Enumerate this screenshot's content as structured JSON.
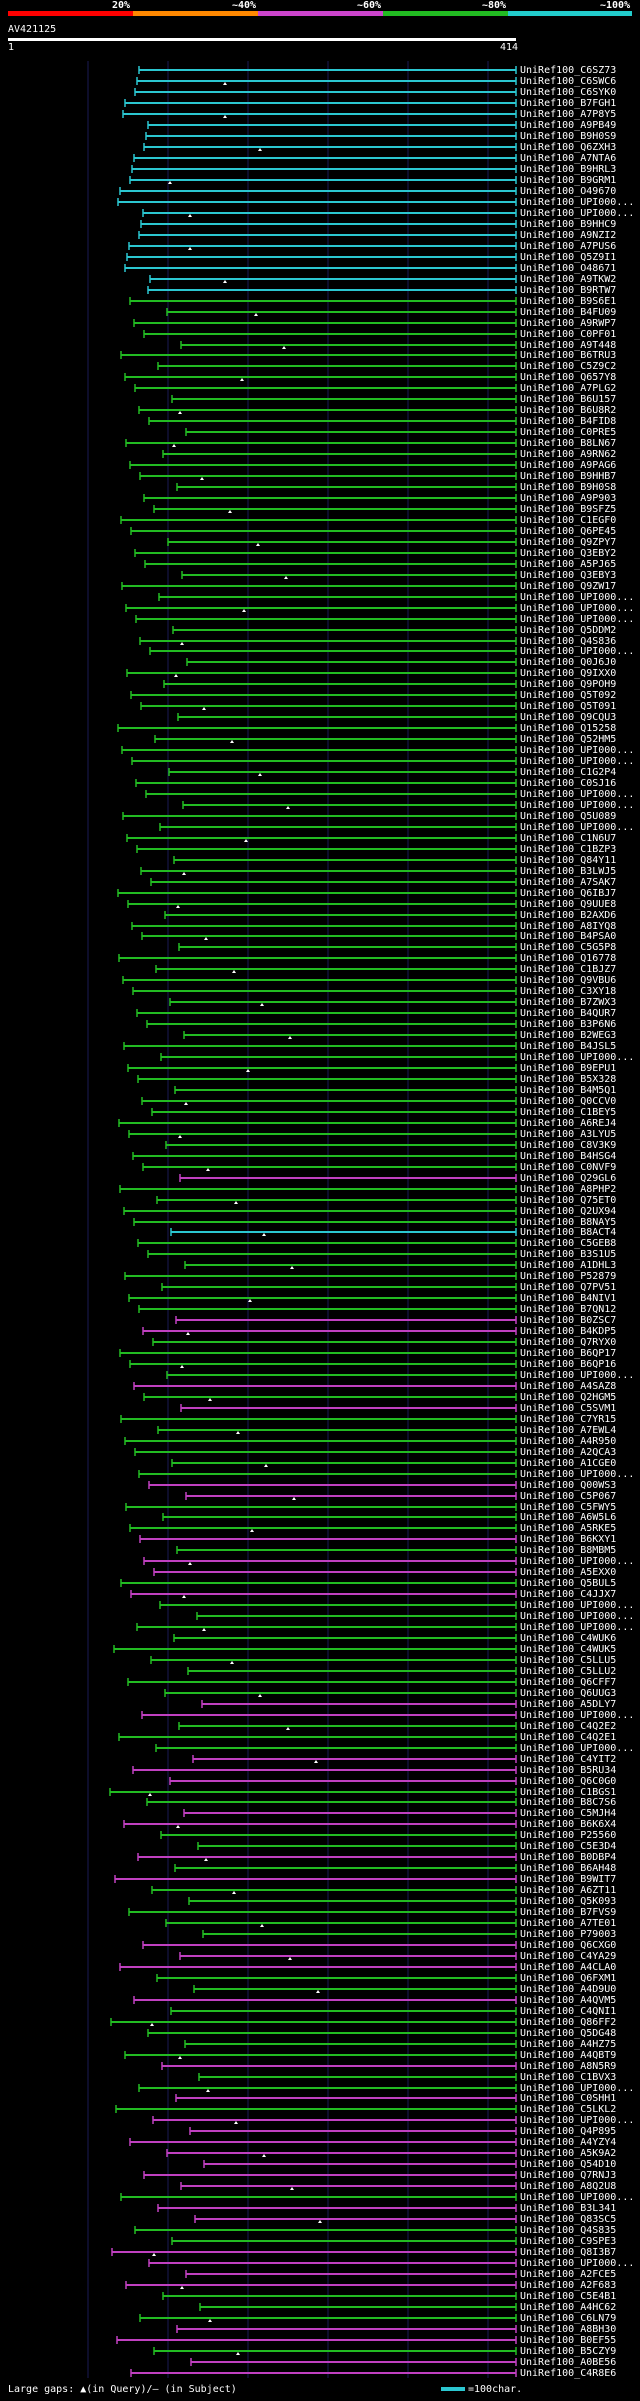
{
  "legend": {
    "thresholds": [
      "20%",
      "~40%",
      "~60%",
      "~80%",
      "~100%"
    ],
    "colors": [
      "#ff0000",
      "#ff8800",
      "#cc44cc",
      "#22bb22",
      "#22cccc"
    ]
  },
  "query": {
    "id": "AV421125",
    "start": "1",
    "end": "414"
  },
  "rows": [
    {
      "label": "UniRef100_C6SZ73",
      "c": "cyan"
    },
    {
      "label": "UniRef100_C6SWC6",
      "c": "cyan"
    },
    {
      "label": "UniRef100_C6SYK0",
      "c": "cyan"
    },
    {
      "label": "UniRef100_B7FGH1",
      "c": "cyan"
    },
    {
      "label": "UniRef100_A7P8Y5",
      "c": "cyan"
    },
    {
      "label": "UniRef100_A9PB49",
      "c": "cyan"
    },
    {
      "label": "UniRef100_B9H0S9",
      "c": "cyan"
    },
    {
      "label": "UniRef100_Q6ZXH3",
      "c": "cyan"
    },
    {
      "label": "UniRef100_A7NTA6",
      "c": "cyan"
    },
    {
      "label": "UniRef100_B9HRL3",
      "c": "cyan"
    },
    {
      "label": "UniRef100_B9GRM1",
      "c": "cyan"
    },
    {
      "label": "UniRef100_O49670",
      "c": "cyan"
    },
    {
      "label": "UniRef100_UPI000...",
      "c": "cyan"
    },
    {
      "label": "UniRef100_UPI000...",
      "c": "cyan"
    },
    {
      "label": "UniRef100_B9HHC9",
      "c": "cyan"
    },
    {
      "label": "UniRef100_A9NZI2",
      "c": "cyan"
    },
    {
      "label": "UniRef100_A7PUS6",
      "c": "cyan"
    },
    {
      "label": "UniRef100_Q5Z9I1",
      "c": "cyan"
    },
    {
      "label": "UniRef100_O48671",
      "c": "cyan"
    },
    {
      "label": "UniRef100_A9TKW2",
      "c": "cyan"
    },
    {
      "label": "UniRef100_B9RTW7",
      "c": "cyan"
    },
    {
      "label": "UniRef100_B9S6E1",
      "c": "green"
    },
    {
      "label": "UniRef100_B4FU09",
      "c": "green"
    },
    {
      "label": "UniRef100_A9RWP7",
      "c": "green"
    },
    {
      "label": "UniRef100_C0PF01",
      "c": "green"
    },
    {
      "label": "UniRef100_A9T448",
      "c": "green"
    },
    {
      "label": "UniRef100_B6TRU3",
      "c": "green"
    },
    {
      "label": "UniRef100_C5Z9C2",
      "c": "green"
    },
    {
      "label": "UniRef100_Q657Y8",
      "c": "green"
    },
    {
      "label": "UniRef100_A7PLG2",
      "c": "green"
    },
    {
      "label": "UniRef100_B6U157",
      "c": "green"
    },
    {
      "label": "UniRef100_B6U8R2",
      "c": "green"
    },
    {
      "label": "UniRef100_B4FID8",
      "c": "green"
    },
    {
      "label": "UniRef100_C0PRE5",
      "c": "green"
    },
    {
      "label": "UniRef100_B8LN67",
      "c": "green"
    },
    {
      "label": "UniRef100_A9RN62",
      "c": "green"
    },
    {
      "label": "UniRef100_A9PAG6",
      "c": "green"
    },
    {
      "label": "UniRef100_B9HHB7",
      "c": "green"
    },
    {
      "label": "UniRef100_B9H0S8",
      "c": "green"
    },
    {
      "label": "UniRef100_A9P903",
      "c": "green"
    },
    {
      "label": "UniRef100_B9SFZ5",
      "c": "green"
    },
    {
      "label": "UniRef100_C1EGF0",
      "c": "green"
    },
    {
      "label": "UniRef100_Q6PE45",
      "c": "green"
    },
    {
      "label": "UniRef100_Q9ZPY7",
      "c": "green"
    },
    {
      "label": "UniRef100_Q3EBY2",
      "c": "green"
    },
    {
      "label": "UniRef100_A5PJ65",
      "c": "green"
    },
    {
      "label": "UniRef100_Q3EBY3",
      "c": "green"
    },
    {
      "label": "UniRef100_Q9ZW17",
      "c": "green"
    },
    {
      "label": "UniRef100_UPI000...",
      "c": "green"
    },
    {
      "label": "UniRef100_UPI000...",
      "c": "green"
    },
    {
      "label": "UniRef100_UPI000...",
      "c": "green"
    },
    {
      "label": "UniRef100_Q5DDM2",
      "c": "green"
    },
    {
      "label": "UniRef100_Q4S836",
      "c": "green"
    },
    {
      "label": "UniRef100_UPI000...",
      "c": "green"
    },
    {
      "label": "UniRef100_Q0J6J0",
      "c": "green"
    },
    {
      "label": "UniRef100_Q9IXX0",
      "c": "green"
    },
    {
      "label": "UniRef100_Q9POH9",
      "c": "green"
    },
    {
      "label": "UniRef100_Q5T092",
      "c": "green"
    },
    {
      "label": "UniRef100_Q5T091",
      "c": "green"
    },
    {
      "label": "UniRef100_Q9CQU3",
      "c": "green"
    },
    {
      "label": "UniRef100_Q15258",
      "c": "green"
    },
    {
      "label": "UniRef100_Q52HM5",
      "c": "green"
    },
    {
      "label": "UniRef100_UPI000...",
      "c": "green"
    },
    {
      "label": "UniRef100_UPI000...",
      "c": "green"
    },
    {
      "label": "UniRef100_C1G2P4",
      "c": "green"
    },
    {
      "label": "UniRef100_C0SJ16",
      "c": "green"
    },
    {
      "label": "UniRef100_UPI000...",
      "c": "green"
    },
    {
      "label": "UniRef100_UPI000...",
      "c": "green"
    },
    {
      "label": "UniRef100_Q5U089",
      "c": "green"
    },
    {
      "label": "UniRef100_UPI000...",
      "c": "green"
    },
    {
      "label": "UniRef100_C1N6U7",
      "c": "green"
    },
    {
      "label": "UniRef100_C1BZP3",
      "c": "green"
    },
    {
      "label": "UniRef100_Q84Y11",
      "c": "green"
    },
    {
      "label": "UniRef100_B3LWJ5",
      "c": "green"
    },
    {
      "label": "UniRef100_A7SAK7",
      "c": "green"
    },
    {
      "label": "UniRef100_Q6IBJ7",
      "c": "green"
    },
    {
      "label": "UniRef100_Q9UUE8",
      "c": "green"
    },
    {
      "label": "UniRef100_B2AXD6",
      "c": "green"
    },
    {
      "label": "UniRef100_A8IYQ8",
      "c": "green"
    },
    {
      "label": "UniRef100_B4PSA0",
      "c": "green"
    },
    {
      "label": "UniRef100_C5G5P8",
      "c": "green"
    },
    {
      "label": "UniRef100_Q16778",
      "c": "green"
    },
    {
      "label": "UniRef100_C1BJZ7",
      "c": "green"
    },
    {
      "label": "UniRef100_Q9VBU6",
      "c": "green"
    },
    {
      "label": "UniRef100_C3XY18",
      "c": "green"
    },
    {
      "label": "UniRef100_B7ZWX3",
      "c": "green"
    },
    {
      "label": "UniRef100_B4QUR7",
      "c": "green"
    },
    {
      "label": "UniRef100_B3P6N6",
      "c": "green"
    },
    {
      "label": "UniRef100_B2WEG3",
      "c": "green"
    },
    {
      "label": "UniRef100_B4JSL5",
      "c": "green"
    },
    {
      "label": "UniRef100_UPI000...",
      "c": "green"
    },
    {
      "label": "UniRef100_B9EPU1",
      "c": "green"
    },
    {
      "label": "UniRef100_B5X328",
      "c": "green"
    },
    {
      "label": "UniRef100_B4M5Q1",
      "c": "green"
    },
    {
      "label": "UniRef100_Q0CCV0",
      "c": "green"
    },
    {
      "label": "UniRef100_C1BEY5",
      "c": "green"
    },
    {
      "label": "UniRef100_A6REJ4",
      "c": "green"
    },
    {
      "label": "UniRef100_A3LYU5",
      "c": "green"
    },
    {
      "label": "UniRef100_C8V3K9",
      "c": "green"
    },
    {
      "label": "UniRef100_B4HSG4",
      "c": "green"
    },
    {
      "label": "UniRef100_C0NVF9",
      "c": "green"
    },
    {
      "label": "UniRef100_Q29GL6",
      "c": "magenta"
    },
    {
      "label": "UniRef100_A8PHP2",
      "c": "green"
    },
    {
      "label": "UniRef100_Q75ET0",
      "c": "green"
    },
    {
      "label": "UniRef100_Q2UX94",
      "c": "green"
    },
    {
      "label": "UniRef100_B8NAY5",
      "c": "green"
    },
    {
      "label": "UniRef100_B8ACT4",
      "c": "cyan"
    },
    {
      "label": "UniRef100_C5GEB8",
      "c": "green"
    },
    {
      "label": "UniRef100_B3S1U5",
      "c": "green"
    },
    {
      "label": "UniRef100_A1DHL3",
      "c": "green"
    },
    {
      "label": "UniRef100_P52879",
      "c": "green"
    },
    {
      "label": "UniRef100_Q7PV51",
      "c": "green"
    },
    {
      "label": "UniRef100_B4NIV1",
      "c": "green"
    },
    {
      "label": "UniRef100_B7QN12",
      "c": "green"
    },
    {
      "label": "UniRef100_B0ZSC7",
      "c": "magenta"
    },
    {
      "label": "UniRef100_B4KDP5",
      "c": "magenta"
    },
    {
      "label": "UniRef100_Q7RYX0",
      "c": "green"
    },
    {
      "label": "UniRef100_B6QP17",
      "c": "green"
    },
    {
      "label": "UniRef100_B6QP16",
      "c": "green"
    },
    {
      "label": "UniRef100_UPI000...",
      "c": "green"
    },
    {
      "label": "UniRef100_A4SAZ8",
      "c": "magenta"
    },
    {
      "label": "UniRef100_Q2HGM5",
      "c": "green"
    },
    {
      "label": "UniRef100_C5SVM1",
      "c": "magenta"
    },
    {
      "label": "UniRef100_C7YR15",
      "c": "green"
    },
    {
      "label": "UniRef100_A7EWL4",
      "c": "green"
    },
    {
      "label": "UniRef100_A4R950",
      "c": "green"
    },
    {
      "label": "UniRef100_A2QCA3",
      "c": "green"
    },
    {
      "label": "UniRef100_A1CGE0",
      "c": "green"
    },
    {
      "label": "UniRef100_UPI000...",
      "c": "green"
    },
    {
      "label": "UniRef100_Q00WS3",
      "c": "magenta"
    },
    {
      "label": "UniRef100_C5P067",
      "c": "magenta"
    },
    {
      "label": "UniRef100_C5FWY5",
      "c": "green"
    },
    {
      "label": "UniRef100_A6W5L6",
      "c": "green"
    },
    {
      "label": "UniRef100_A5RKE5",
      "c": "green"
    },
    {
      "label": "UniRef100_B6KXY1",
      "c": "magenta"
    },
    {
      "label": "UniRef100_B8MBM5",
      "c": "green"
    },
    {
      "label": "UniRef100_UPI000...",
      "c": "magenta"
    },
    {
      "label": "UniRef100_A5EXX0",
      "c": "magenta"
    },
    {
      "label": "UniRef100_Q5BUL5",
      "c": "green"
    },
    {
      "label": "UniRef100_C4JJX7",
      "c": "magenta"
    },
    {
      "label": "UniRef100_UPI000...",
      "c": "green"
    },
    {
      "label": "UniRef100_UPI000...",
      "c": "green"
    },
    {
      "label": "UniRef100_UPI000...",
      "c": "green"
    },
    {
      "label": "UniRef100_C4WUK6",
      "c": "green"
    },
    {
      "label": "UniRef100_C4WUK5",
      "c": "green"
    },
    {
      "label": "UniRef100_C5LLU5",
      "c": "green"
    },
    {
      "label": "UniRef100_C5LLU2",
      "c": "green"
    },
    {
      "label": "UniRef100_Q6CFF7",
      "c": "green"
    },
    {
      "label": "UniRef100_Q6UUG3",
      "c": "green"
    },
    {
      "label": "UniRef100_A5DLY7",
      "c": "magenta"
    },
    {
      "label": "UniRef100_UPI000...",
      "c": "magenta"
    },
    {
      "label": "UniRef100_C4Q2E2",
      "c": "green"
    },
    {
      "label": "UniRef100_C4Q2E1",
      "c": "green"
    },
    {
      "label": "UniRef100_UPI000...",
      "c": "green"
    },
    {
      "label": "UniRef100_C4YIT2",
      "c": "magenta"
    },
    {
      "label": "UniRef100_B5RU34",
      "c": "magenta"
    },
    {
      "label": "UniRef100_Q6C0G0",
      "c": "magenta"
    },
    {
      "label": "UniRef100_C1BGS1",
      "c": "green"
    },
    {
      "label": "UniRef100_B8C7S6",
      "c": "green"
    },
    {
      "label": "UniRef100_C5MJH4",
      "c": "magenta"
    },
    {
      "label": "UniRef100_B6K6X4",
      "c": "magenta"
    },
    {
      "label": "UniRef100_P25560",
      "c": "green"
    },
    {
      "label": "UniRef100_C5E3D4",
      "c": "green"
    },
    {
      "label": "UniRef100_B0DBP4",
      "c": "magenta"
    },
    {
      "label": "UniRef100_B6AH48",
      "c": "green"
    },
    {
      "label": "UniRef100_B9WIT7",
      "c": "magenta"
    },
    {
      "label": "UniRef100_A6ZT11",
      "c": "green"
    },
    {
      "label": "UniRef100_Q5K093",
      "c": "green"
    },
    {
      "label": "UniRef100_B7FVS9",
      "c": "green"
    },
    {
      "label": "UniRef100_A7TE01",
      "c": "green"
    },
    {
      "label": "UniRef100_P79003",
      "c": "green"
    },
    {
      "label": "UniRef100_Q6CXG0",
      "c": "magenta"
    },
    {
      "label": "UniRef100_C4YA29",
      "c": "magenta"
    },
    {
      "label": "UniRef100_A4CLA0",
      "c": "magenta"
    },
    {
      "label": "UniRef100_Q6FXM1",
      "c": "green"
    },
    {
      "label": "UniRef100_A4D9U0",
      "c": "green"
    },
    {
      "label": "UniRef100_A4QVM5",
      "c": "magenta"
    },
    {
      "label": "UniRef100_C4QNI1",
      "c": "green"
    },
    {
      "label": "UniRef100_Q86FF2",
      "c": "green"
    },
    {
      "label": "UniRef100_Q5DG48",
      "c": "green"
    },
    {
      "label": "UniRef100_A4HZ75",
      "c": "green"
    },
    {
      "label": "UniRef100_A4QBT9",
      "c": "green"
    },
    {
      "label": "UniRef100_A8N5R9",
      "c": "magenta"
    },
    {
      "label": "UniRef100_C1BVX3",
      "c": "green"
    },
    {
      "label": "UniRef100_UPI000...",
      "c": "green"
    },
    {
      "label": "UniRef100_C0SHH1",
      "c": "magenta"
    },
    {
      "label": "UniRef100_C5LKL2",
      "c": "green"
    },
    {
      "label": "UniRef100_UPI000...",
      "c": "magenta"
    },
    {
      "label": "UniRef100_Q4P895",
      "c": "magenta"
    },
    {
      "label": "UniRef100_A4YZY4",
      "c": "magenta"
    },
    {
      "label": "UniRef100_A5K9A2",
      "c": "magenta"
    },
    {
      "label": "UniRef100_Q54D10",
      "c": "magenta"
    },
    {
      "label": "UniRef100_Q7RNJ3",
      "c": "magenta"
    },
    {
      "label": "UniRef100_A8Q2U8",
      "c": "magenta"
    },
    {
      "label": "UniRef100_UPI000...",
      "c": "green"
    },
    {
      "label": "UniRef100_B3L341",
      "c": "magenta"
    },
    {
      "label": "UniRef100_Q83SC5",
      "c": "magenta"
    },
    {
      "label": "UniRef100_Q4S835",
      "c": "green"
    },
    {
      "label": "UniRef100_C9SPE3",
      "c": "green"
    },
    {
      "label": "UniRef100_Q8I3B7",
      "c": "magenta"
    },
    {
      "label": "UniRef100_UPI000...",
      "c": "magenta"
    },
    {
      "label": "UniRef100_A2FCE5",
      "c": "magenta"
    },
    {
      "label": "UniRef100_A2F683",
      "c": "magenta"
    },
    {
      "label": "UniRef100_C5E4B1",
      "c": "green"
    },
    {
      "label": "UniRef100_A4HC62",
      "c": "green"
    },
    {
      "label": "UniRef100_C6LN79",
      "c": "green"
    },
    {
      "label": "UniRef100_A8BH30",
      "c": "magenta"
    },
    {
      "label": "UniRef100_B0EF55",
      "c": "magenta"
    },
    {
      "label": "UniRef100_B5CZY9",
      "c": "green"
    },
    {
      "label": "UniRef100_A0BE56",
      "c": "magenta"
    },
    {
      "label": "UniRef100_C4R8E6",
      "c": "magenta"
    }
  ],
  "footer": {
    "legend_text": "Large gaps: ▲(in Query)/— (in Subject)",
    "scale_text": "=100char."
  },
  "palette": {
    "cyan": "#2bc6d0",
    "green": "#22bb22",
    "magenta": "#c040c0",
    "grid": "#1a1a55"
  }
}
